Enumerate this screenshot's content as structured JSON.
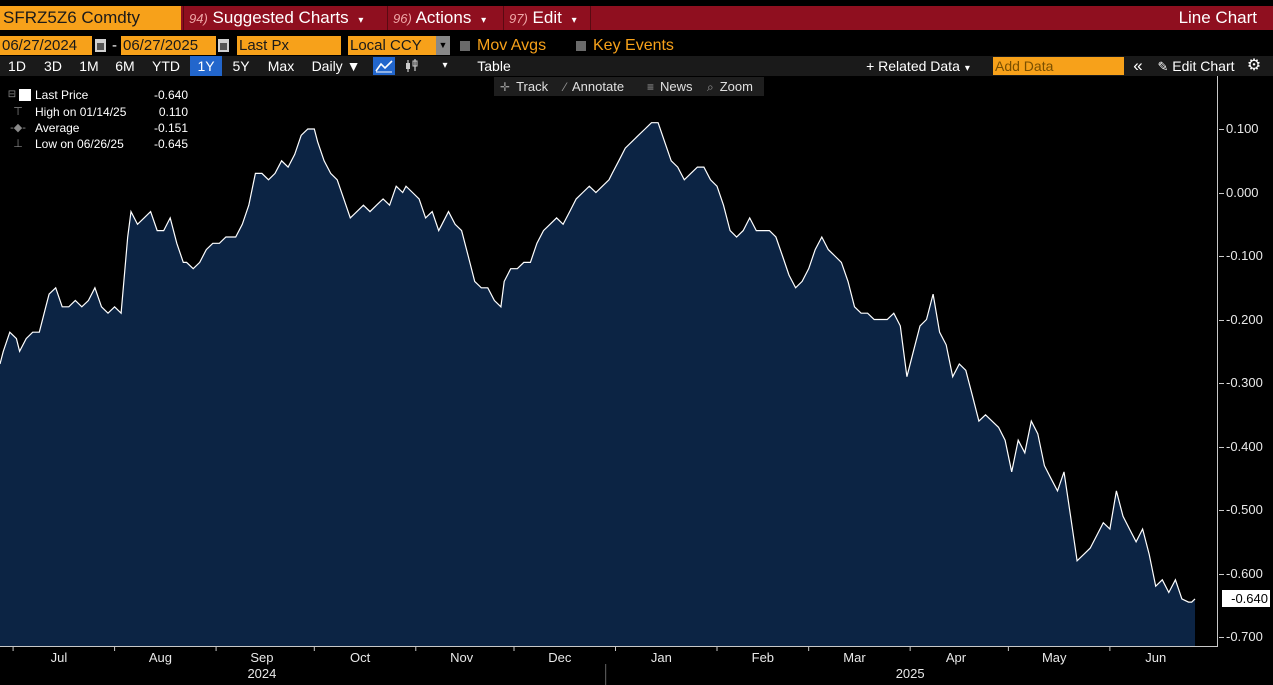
{
  "header": {
    "ticker": "SFRZ5Z6 Comdty",
    "menus": [
      {
        "num": "94)",
        "label": "Suggested Charts"
      },
      {
        "num": "96)",
        "label": "Actions"
      },
      {
        "num": "97)",
        "label": "Edit"
      }
    ],
    "chart_type": "Line Chart"
  },
  "settings": {
    "start_date": "06/27/2024",
    "end_date": "06/27/2025",
    "date_separator": "-",
    "field": "Last Px",
    "currency": "Local CCY",
    "mov_avgs": "Mov Avgs",
    "key_events": "Key Events"
  },
  "toolbar": {
    "periods": [
      "1D",
      "3D",
      "1M",
      "6M",
      "YTD",
      "1Y",
      "5Y",
      "Max"
    ],
    "active_period": "1Y",
    "frequency": "Daily ▼",
    "table": "Table",
    "related_data": "+ Related Data",
    "add_data_placeholder": "Add Data",
    "edit_chart": "Edit Chart"
  },
  "chart_tools": {
    "track": "Track",
    "annotate": "Annotate",
    "news": "News",
    "zoom": "Zoom"
  },
  "legend": {
    "last_price_label": "Last Price",
    "last_price_value": "-0.640",
    "high_label": "High on 01/14/25",
    "high_value": "0.110",
    "average_label": "Average",
    "average_value": "-0.151",
    "low_label": "Low on 06/26/25",
    "low_value": "-0.645"
  },
  "last_badge": "-0.640",
  "colors": {
    "header_red": "#8f0f1f",
    "bloomberg_orange": "#f7a11a",
    "area_fill": "#0c2444",
    "line": "#ffffff",
    "active_blue": "#2266cc"
  },
  "chart_data": {
    "type": "area",
    "title": "",
    "xlabel": "",
    "ylabel": "",
    "ylim": [
      -0.72,
      0.17
    ],
    "ytick_labels": [
      "0.100",
      "0.000",
      "-0.100",
      "-0.200",
      "-0.300",
      "-0.400",
      "-0.500",
      "-0.600",
      "-0.700"
    ],
    "yticks": [
      0.1,
      0.0,
      -0.1,
      -0.2,
      -0.3,
      -0.4,
      -0.5,
      -0.6,
      -0.7
    ],
    "xlim": [
      "2024-06-27",
      "2025-06-27"
    ],
    "month_labels": [
      {
        "date": "2024-07-15",
        "label": "Jul"
      },
      {
        "date": "2024-08-15",
        "label": "Aug"
      },
      {
        "date": "2024-09-15",
        "label": "Sep"
      },
      {
        "date": "2024-10-15",
        "label": "Oct"
      },
      {
        "date": "2024-11-15",
        "label": "Nov"
      },
      {
        "date": "2024-12-15",
        "label": "Dec"
      },
      {
        "date": "2025-01-15",
        "label": "Jan"
      },
      {
        "date": "2025-02-15",
        "label": "Feb"
      },
      {
        "date": "2025-03-15",
        "label": "Mar"
      },
      {
        "date": "2025-04-15",
        "label": "Apr"
      },
      {
        "date": "2025-05-15",
        "label": "May"
      },
      {
        "date": "2025-06-15",
        "label": "Jun"
      }
    ],
    "year_labels": [
      {
        "date": "2024-09-15",
        "label": "2024"
      },
      {
        "date": "2025-04-01",
        "label": "2025"
      }
    ],
    "year_divider": "2024-12-29",
    "grid": false,
    "legend_position": "top-left",
    "series": [
      {
        "name": "Last Price",
        "points": [
          [
            "2024-06-27",
            -0.27
          ],
          [
            "2024-06-28",
            -0.25
          ],
          [
            "2024-06-30",
            -0.22
          ],
          [
            "2024-07-02",
            -0.23
          ],
          [
            "2024-07-03",
            -0.25
          ],
          [
            "2024-07-05",
            -0.23
          ],
          [
            "2024-07-07",
            -0.22
          ],
          [
            "2024-07-09",
            -0.22
          ],
          [
            "2024-07-11",
            -0.18
          ],
          [
            "2024-07-12",
            -0.16
          ],
          [
            "2024-07-14",
            -0.15
          ],
          [
            "2024-07-16",
            -0.18
          ],
          [
            "2024-07-18",
            -0.18
          ],
          [
            "2024-07-20",
            -0.17
          ],
          [
            "2024-07-22",
            -0.18
          ],
          [
            "2024-07-24",
            -0.17
          ],
          [
            "2024-07-26",
            -0.15
          ],
          [
            "2024-07-28",
            -0.18
          ],
          [
            "2024-07-30",
            -0.19
          ],
          [
            "2024-08-01",
            -0.18
          ],
          [
            "2024-08-03",
            -0.19
          ],
          [
            "2024-08-05",
            -0.07
          ],
          [
            "2024-08-06",
            -0.03
          ],
          [
            "2024-08-08",
            -0.05
          ],
          [
            "2024-08-10",
            -0.04
          ],
          [
            "2024-08-12",
            -0.03
          ],
          [
            "2024-08-14",
            -0.06
          ],
          [
            "2024-08-16",
            -0.06
          ],
          [
            "2024-08-18",
            -0.04
          ],
          [
            "2024-08-20",
            -0.08
          ],
          [
            "2024-08-22",
            -0.11
          ],
          [
            "2024-08-23",
            -0.11
          ],
          [
            "2024-08-25",
            -0.12
          ],
          [
            "2024-08-27",
            -0.11
          ],
          [
            "2024-08-29",
            -0.09
          ],
          [
            "2024-08-31",
            -0.08
          ],
          [
            "2024-09-02",
            -0.08
          ],
          [
            "2024-09-04",
            -0.07
          ],
          [
            "2024-09-06",
            -0.07
          ],
          [
            "2024-09-07",
            -0.07
          ],
          [
            "2024-09-09",
            -0.05
          ],
          [
            "2024-09-11",
            -0.02
          ],
          [
            "2024-09-13",
            0.03
          ],
          [
            "2024-09-15",
            0.03
          ],
          [
            "2024-09-17",
            0.02
          ],
          [
            "2024-09-19",
            0.03
          ],
          [
            "2024-09-21",
            0.05
          ],
          [
            "2024-09-23",
            0.04
          ],
          [
            "2024-09-25",
            0.06
          ],
          [
            "2024-09-27",
            0.09
          ],
          [
            "2024-09-29",
            0.1
          ],
          [
            "2024-10-01",
            0.1
          ],
          [
            "2024-10-02",
            0.08
          ],
          [
            "2024-10-04",
            0.05
          ],
          [
            "2024-10-06",
            0.03
          ],
          [
            "2024-10-08",
            0.02
          ],
          [
            "2024-10-10",
            -0.01
          ],
          [
            "2024-10-12",
            -0.04
          ],
          [
            "2024-10-14",
            -0.03
          ],
          [
            "2024-10-16",
            -0.02
          ],
          [
            "2024-10-18",
            -0.03
          ],
          [
            "2024-10-20",
            -0.02
          ],
          [
            "2024-10-22",
            -0.01
          ],
          [
            "2024-10-24",
            -0.02
          ],
          [
            "2024-10-26",
            0.01
          ],
          [
            "2024-10-28",
            0.0
          ],
          [
            "2024-10-29",
            0.01
          ],
          [
            "2024-10-31",
            0.0
          ],
          [
            "2024-11-02",
            -0.01
          ],
          [
            "2024-11-04",
            -0.04
          ],
          [
            "2024-11-06",
            -0.03
          ],
          [
            "2024-11-08",
            -0.06
          ],
          [
            "2024-11-09",
            -0.05
          ],
          [
            "2024-11-11",
            -0.03
          ],
          [
            "2024-11-13",
            -0.05
          ],
          [
            "2024-11-15",
            -0.06
          ],
          [
            "2024-11-17",
            -0.1
          ],
          [
            "2024-11-19",
            -0.14
          ],
          [
            "2024-11-21",
            -0.15
          ],
          [
            "2024-11-23",
            -0.15
          ],
          [
            "2024-11-25",
            -0.17
          ],
          [
            "2024-11-27",
            -0.18
          ],
          [
            "2024-11-28",
            -0.14
          ],
          [
            "2024-11-30",
            -0.12
          ],
          [
            "2024-12-02",
            -0.12
          ],
          [
            "2024-12-04",
            -0.11
          ],
          [
            "2024-12-06",
            -0.11
          ],
          [
            "2024-12-08",
            -0.08
          ],
          [
            "2024-12-10",
            -0.06
          ],
          [
            "2024-12-12",
            -0.05
          ],
          [
            "2024-12-14",
            -0.04
          ],
          [
            "2024-12-16",
            -0.05
          ],
          [
            "2024-12-18",
            -0.03
          ],
          [
            "2024-12-20",
            -0.01
          ],
          [
            "2024-12-22",
            0.0
          ],
          [
            "2024-12-24",
            0.01
          ],
          [
            "2024-12-26",
            0.0
          ],
          [
            "2024-12-28",
            0.01
          ],
          [
            "2024-12-30",
            0.02
          ],
          [
            "2024-12-31",
            0.03
          ],
          [
            "2025-01-02",
            0.05
          ],
          [
            "2025-01-04",
            0.07
          ],
          [
            "2025-01-06",
            0.08
          ],
          [
            "2025-01-08",
            0.09
          ],
          [
            "2025-01-10",
            0.1
          ],
          [
            "2025-01-12",
            0.11
          ],
          [
            "2025-01-14",
            0.11
          ],
          [
            "2025-01-16",
            0.08
          ],
          [
            "2025-01-18",
            0.05
          ],
          [
            "2025-01-20",
            0.04
          ],
          [
            "2025-01-22",
            0.02
          ],
          [
            "2025-01-24",
            0.03
          ],
          [
            "2025-01-26",
            0.04
          ],
          [
            "2025-01-28",
            0.04
          ],
          [
            "2025-01-30",
            0.02
          ],
          [
            "2025-02-01",
            0.01
          ],
          [
            "2025-02-03",
            -0.02
          ],
          [
            "2025-02-05",
            -0.06
          ],
          [
            "2025-02-07",
            -0.07
          ],
          [
            "2025-02-09",
            -0.06
          ],
          [
            "2025-02-11",
            -0.04
          ],
          [
            "2025-02-13",
            -0.06
          ],
          [
            "2025-02-15",
            -0.06
          ],
          [
            "2025-02-17",
            -0.06
          ],
          [
            "2025-02-19",
            -0.07
          ],
          [
            "2025-02-21",
            -0.1
          ],
          [
            "2025-02-23",
            -0.13
          ],
          [
            "2025-02-25",
            -0.15
          ],
          [
            "2025-02-27",
            -0.14
          ],
          [
            "2025-03-01",
            -0.12
          ],
          [
            "2025-03-03",
            -0.09
          ],
          [
            "2025-03-05",
            -0.07
          ],
          [
            "2025-03-07",
            -0.09
          ],
          [
            "2025-03-09",
            -0.1
          ],
          [
            "2025-03-11",
            -0.11
          ],
          [
            "2025-03-13",
            -0.14
          ],
          [
            "2025-03-15",
            -0.18
          ],
          [
            "2025-03-17",
            -0.19
          ],
          [
            "2025-03-19",
            -0.19
          ],
          [
            "2025-03-21",
            -0.2
          ],
          [
            "2025-03-23",
            -0.2
          ],
          [
            "2025-03-25",
            -0.2
          ],
          [
            "2025-03-27",
            -0.19
          ],
          [
            "2025-03-29",
            -0.21
          ],
          [
            "2025-03-31",
            -0.29
          ],
          [
            "2025-04-02",
            -0.25
          ],
          [
            "2025-04-04",
            -0.21
          ],
          [
            "2025-04-06",
            -0.2
          ],
          [
            "2025-04-08",
            -0.16
          ],
          [
            "2025-04-10",
            -0.22
          ],
          [
            "2025-04-12",
            -0.24
          ],
          [
            "2025-04-14",
            -0.29
          ],
          [
            "2025-04-16",
            -0.27
          ],
          [
            "2025-04-18",
            -0.28
          ],
          [
            "2025-04-20",
            -0.32
          ],
          [
            "2025-04-22",
            -0.36
          ],
          [
            "2025-04-24",
            -0.35
          ],
          [
            "2025-04-26",
            -0.36
          ],
          [
            "2025-04-28",
            -0.37
          ],
          [
            "2025-04-30",
            -0.39
          ],
          [
            "2025-05-02",
            -0.44
          ],
          [
            "2025-05-04",
            -0.39
          ],
          [
            "2025-05-06",
            -0.41
          ],
          [
            "2025-05-08",
            -0.36
          ],
          [
            "2025-05-10",
            -0.38
          ],
          [
            "2025-05-12",
            -0.43
          ],
          [
            "2025-05-14",
            -0.45
          ],
          [
            "2025-05-16",
            -0.47
          ],
          [
            "2025-05-18",
            -0.44
          ],
          [
            "2025-05-20",
            -0.51
          ],
          [
            "2025-05-22",
            -0.58
          ],
          [
            "2025-05-24",
            -0.57
          ],
          [
            "2025-05-26",
            -0.56
          ],
          [
            "2025-05-28",
            -0.54
          ],
          [
            "2025-05-30",
            -0.52
          ],
          [
            "2025-06-01",
            -0.53
          ],
          [
            "2025-06-03",
            -0.47
          ],
          [
            "2025-06-05",
            -0.51
          ],
          [
            "2025-06-07",
            -0.53
          ],
          [
            "2025-06-09",
            -0.55
          ],
          [
            "2025-06-11",
            -0.53
          ],
          [
            "2025-06-13",
            -0.57
          ],
          [
            "2025-06-15",
            -0.62
          ],
          [
            "2025-06-17",
            -0.61
          ],
          [
            "2025-06-19",
            -0.63
          ],
          [
            "2025-06-21",
            -0.61
          ],
          [
            "2025-06-23",
            -0.64
          ],
          [
            "2025-06-25",
            -0.645
          ],
          [
            "2025-06-26",
            -0.645
          ],
          [
            "2025-06-27",
            -0.64
          ]
        ]
      }
    ]
  }
}
